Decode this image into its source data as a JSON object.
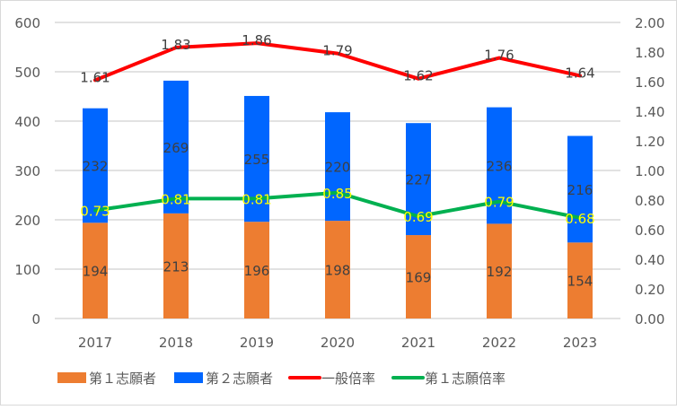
{
  "chart_data": {
    "type": "bar",
    "categories": [
      "2017",
      "2018",
      "2019",
      "2020",
      "2021",
      "2022",
      "2023"
    ],
    "stacked": true,
    "series": [
      {
        "name": "第１志願者",
        "type": "bar",
        "axis": "left",
        "color": "#ED7D31",
        "values": [
          194,
          213,
          196,
          198,
          169,
          192,
          154
        ]
      },
      {
        "name": "第２志願者",
        "type": "bar",
        "axis": "left",
        "color": "#0066FF",
        "values": [
          232,
          269,
          255,
          220,
          227,
          236,
          216
        ]
      },
      {
        "name": "一般倍率",
        "type": "line",
        "axis": "right",
        "color": "#FF0000",
        "label_color": "#404040",
        "values": [
          1.61,
          1.83,
          1.86,
          1.79,
          1.62,
          1.76,
          1.64
        ]
      },
      {
        "name": "第１志願倍率",
        "type": "line",
        "axis": "right",
        "color": "#00B050",
        "label_color": "#FFFF00",
        "values": [
          0.73,
          0.81,
          0.81,
          0.85,
          0.69,
          0.79,
          0.68
        ]
      }
    ],
    "ylim": [
      0,
      600
    ],
    "y_ticks": [
      "0",
      "100",
      "200",
      "300",
      "400",
      "500",
      "600"
    ],
    "y2lim": [
      0,
      2
    ],
    "y2_ticks": [
      "0.00",
      "0.20",
      "0.40",
      "0.60",
      "0.80",
      "1.00",
      "1.20",
      "1.40",
      "1.60",
      "1.80",
      "2.00"
    ],
    "grid": true,
    "legend": "bottom"
  }
}
